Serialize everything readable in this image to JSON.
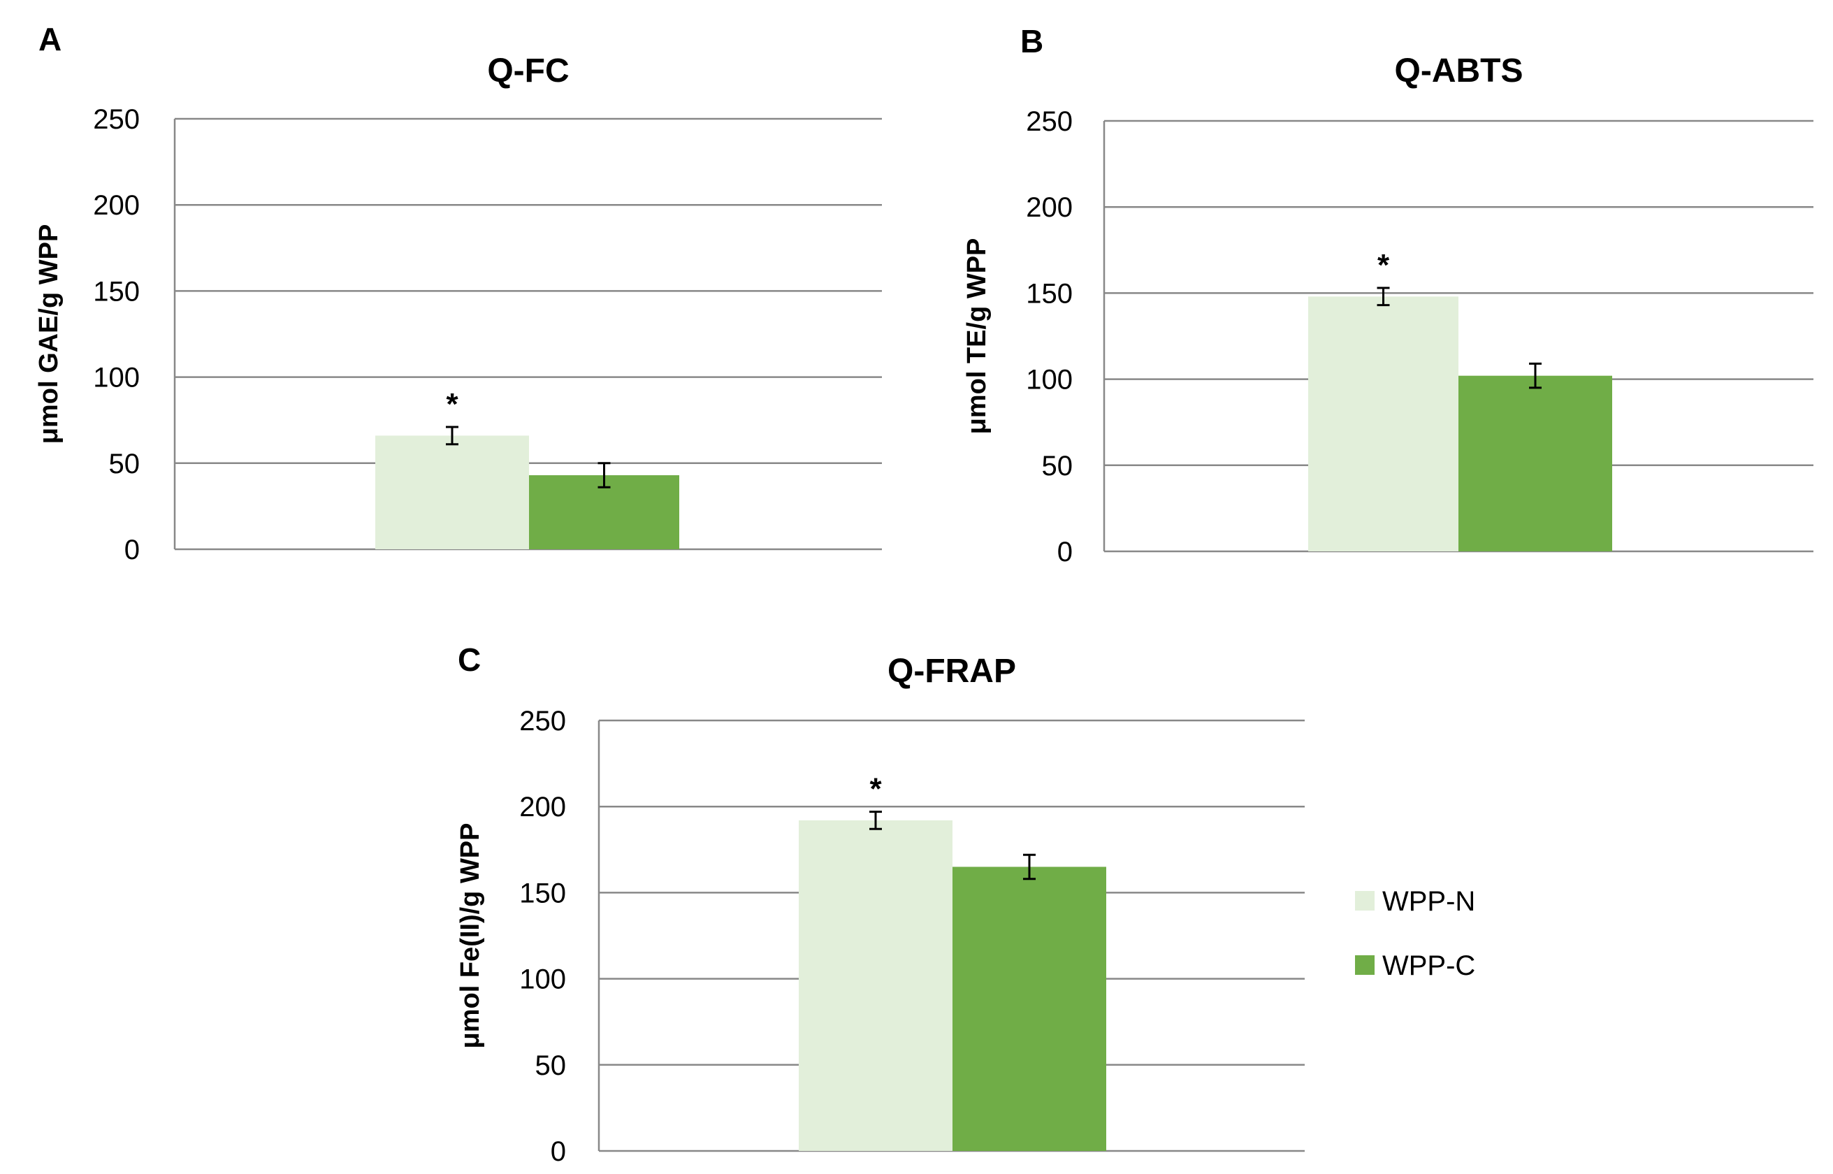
{
  "colors": {
    "wpp_n": "#e2efda",
    "wpp_c": "#70ad47",
    "grid": "#888888"
  },
  "legend": [
    {
      "name": "WPP-N",
      "color": "#e2efda"
    },
    {
      "name": "WPP-C",
      "color": "#70ad47"
    }
  ],
  "chart_data": [
    {
      "type": "bar",
      "panel": "A",
      "title": "Q-FC",
      "ylabel": "μmol GAE/g WPP",
      "ylim": [
        0,
        250
      ],
      "yticks": [
        0,
        50,
        100,
        150,
        200,
        250
      ],
      "categories": [
        ""
      ],
      "series": [
        {
          "name": "WPP-N",
          "values": [
            66
          ],
          "errors": [
            5
          ],
          "significance": "*"
        },
        {
          "name": "WPP-C",
          "values": [
            43
          ],
          "errors": [
            7
          ],
          "significance": ""
        }
      ]
    },
    {
      "type": "bar",
      "panel": "B",
      "title": "Q-ABTS",
      "ylabel": "μmol TE/g WPP",
      "ylim": [
        0,
        250
      ],
      "yticks": [
        0,
        50,
        100,
        150,
        200,
        250
      ],
      "categories": [
        ""
      ],
      "series": [
        {
          "name": "WPP-N",
          "values": [
            148
          ],
          "errors": [
            5
          ],
          "significance": "*"
        },
        {
          "name": "WPP-C",
          "values": [
            102
          ],
          "errors": [
            7
          ],
          "significance": ""
        }
      ]
    },
    {
      "type": "bar",
      "panel": "C",
      "title": "Q-FRAP",
      "ylabel": "μmol Fe(II)/g WPP",
      "ylim": [
        0,
        250
      ],
      "yticks": [
        0,
        50,
        100,
        150,
        200,
        250
      ],
      "categories": [
        ""
      ],
      "series": [
        {
          "name": "WPP-N",
          "values": [
            192
          ],
          "errors": [
            5
          ],
          "significance": "*"
        },
        {
          "name": "WPP-C",
          "values": [
            165
          ],
          "errors": [
            7
          ],
          "significance": ""
        }
      ]
    }
  ]
}
